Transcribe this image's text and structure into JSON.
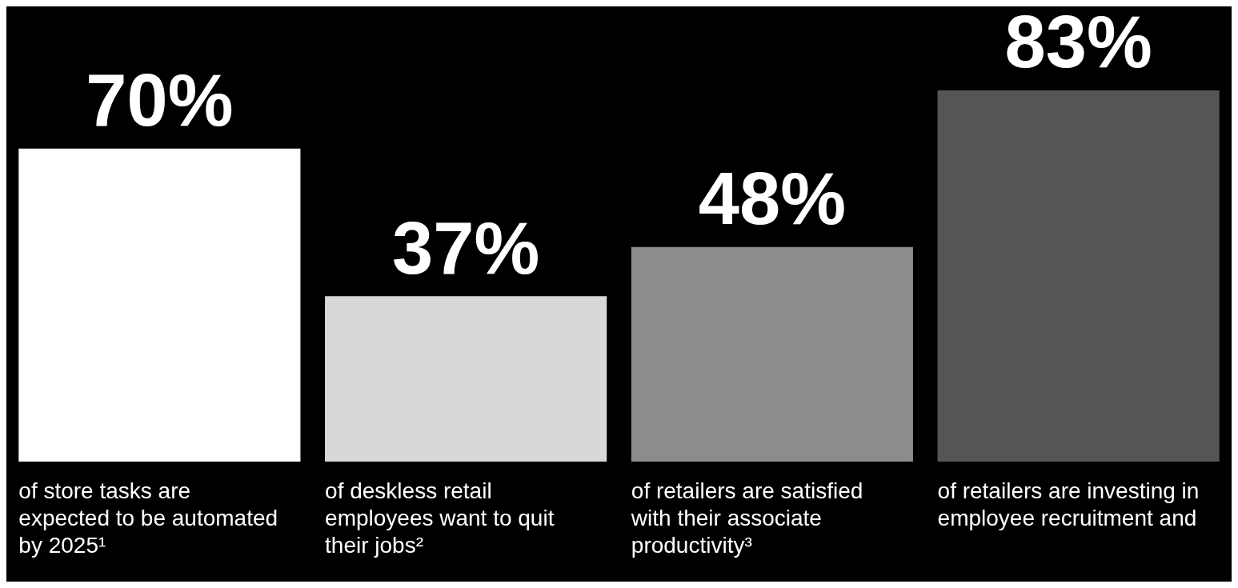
{
  "chart_data": {
    "type": "bar",
    "categories": [
      "of store tasks are expected to be automated by 2025¹",
      "of deskless retail employees want to quit their jobs²",
      "of retailers are satisfied with their associate productivity³",
      "of retailers are investing in employee recruitment and"
    ],
    "values": [
      70,
      37,
      48,
      83
    ],
    "colors": [
      "#ffffff",
      "#d8d8da",
      "#8c8c8c",
      "#555555"
    ],
    "value_labels": [
      "70%",
      "37%",
      "48%",
      "83%"
    ],
    "tick_labels": "x"
  }
}
